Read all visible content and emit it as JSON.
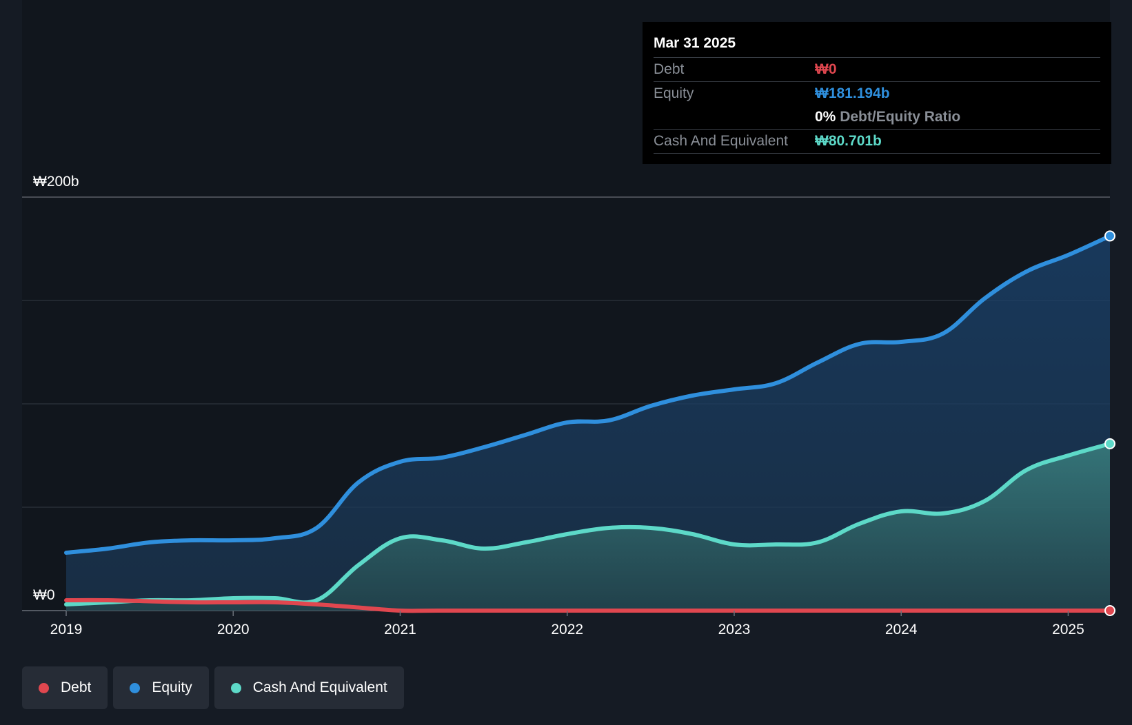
{
  "chart_data": {
    "type": "area",
    "title": "",
    "xlabel": "",
    "ylabel": "",
    "currency": "₩",
    "y_tick_labels": [
      "₩200b",
      "₩0"
    ],
    "ylim": [
      0,
      200
    ],
    "xlim": [
      2019.0,
      2025.25
    ],
    "x_tick_labels": [
      "2019",
      "2020",
      "2021",
      "2022",
      "2023",
      "2024",
      "2025"
    ],
    "x_ticks": [
      2019,
      2020,
      2021,
      2022,
      2023,
      2024,
      2025
    ],
    "gridlines": [
      0,
      50,
      100,
      150,
      200
    ],
    "legend_position": "bottom-left",
    "series": [
      {
        "name": "Equity",
        "color": "#2f8fdd",
        "x": [
          2019.0,
          2019.25,
          2019.5,
          2019.75,
          2020.0,
          2020.25,
          2020.5,
          2020.75,
          2021.0,
          2021.25,
          2021.5,
          2021.75,
          2022.0,
          2022.25,
          2022.5,
          2022.75,
          2023.0,
          2023.25,
          2023.5,
          2023.75,
          2024.0,
          2024.25,
          2024.5,
          2024.75,
          2025.0,
          2025.25
        ],
        "values": [
          28,
          30,
          33,
          34,
          34,
          35,
          40,
          62,
          72,
          74,
          79,
          85,
          91,
          92,
          99,
          104,
          107,
          110,
          120,
          129,
          130,
          134,
          151,
          164,
          172,
          181.194
        ]
      },
      {
        "name": "Cash And Equivalent",
        "color": "#5dd9c8",
        "x": [
          2019.0,
          2019.25,
          2019.5,
          2019.75,
          2020.0,
          2020.25,
          2020.5,
          2020.75,
          2021.0,
          2021.25,
          2021.5,
          2021.75,
          2022.0,
          2022.25,
          2022.5,
          2022.75,
          2023.0,
          2023.25,
          2023.5,
          2023.75,
          2024.0,
          2024.25,
          2024.5,
          2024.75,
          2025.0,
          2025.25
        ],
        "values": [
          3,
          4,
          5,
          5,
          6,
          6,
          5,
          22,
          35,
          34,
          30,
          33,
          37,
          40,
          40,
          37,
          32,
          32,
          33,
          42,
          48,
          47,
          53,
          68,
          75,
          80.701
        ]
      },
      {
        "name": "Debt",
        "color": "#e0474f",
        "x": [
          2019.0,
          2019.25,
          2019.5,
          2019.75,
          2020.0,
          2020.25,
          2020.5,
          2020.75,
          2021.0,
          2021.25,
          2022.0,
          2023.0,
          2024.0,
          2025.0,
          2025.25
        ],
        "values": [
          5,
          5,
          4.5,
          4,
          4,
          4,
          3,
          1.5,
          0,
          0,
          0,
          0,
          0,
          0,
          0
        ]
      }
    ]
  },
  "tooltip": {
    "date": "Mar 31 2025",
    "debt_label": "Debt",
    "debt_value": "₩0",
    "equity_label": "Equity",
    "equity_value": "₩181.194b",
    "ratio_value": "0%",
    "ratio_label": "Debt/Equity Ratio",
    "cash_label": "Cash And Equivalent",
    "cash_value": "₩80.701b"
  },
  "legend": {
    "items": [
      {
        "label": "Debt",
        "color": "#e0474f"
      },
      {
        "label": "Equity",
        "color": "#2f8fdd"
      },
      {
        "label": "Cash And Equivalent",
        "color": "#5dd9c8"
      }
    ]
  },
  "colors": {
    "background": "#151b24",
    "plot_background": "#11161d",
    "debt": "#e0474f",
    "equity": "#2f8fdd",
    "cash": "#5dd9c8"
  }
}
